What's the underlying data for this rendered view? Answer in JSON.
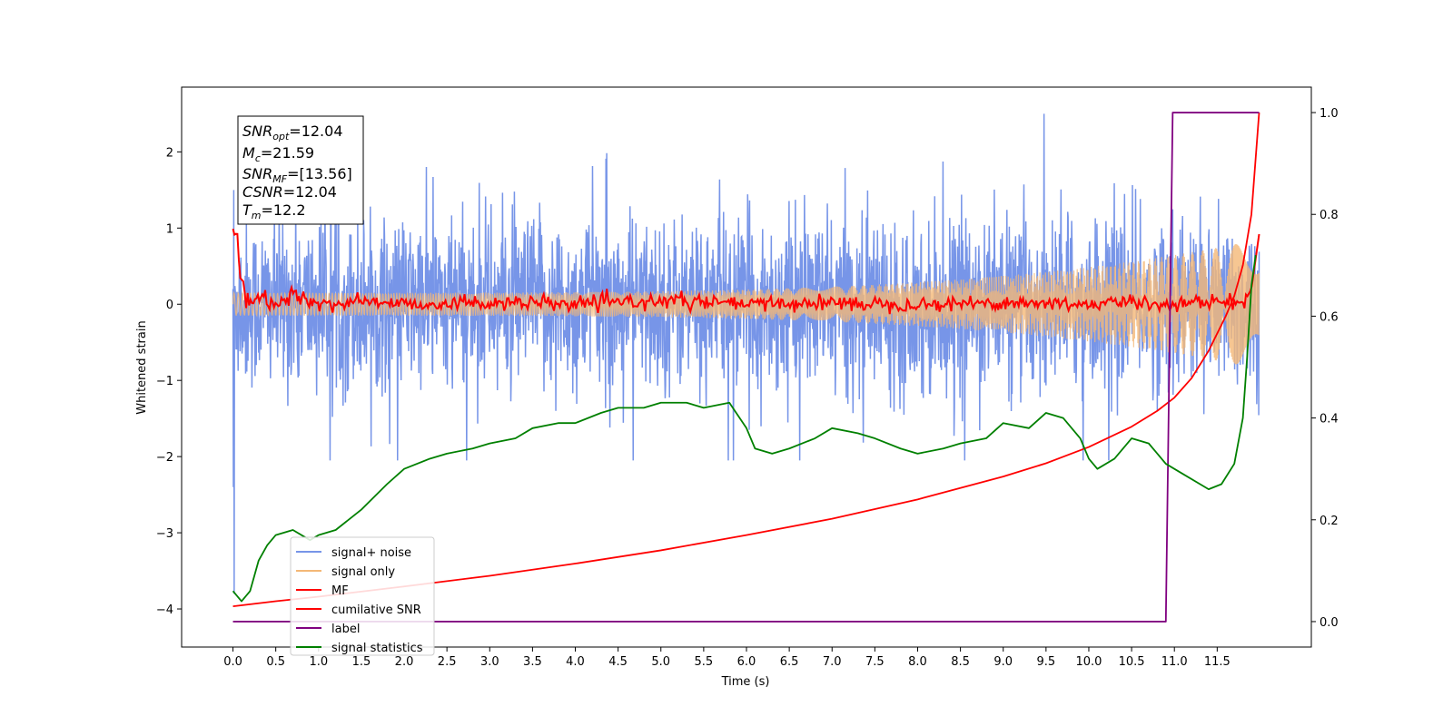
{
  "chart_data": {
    "type": "line",
    "xlabel": "Time (s)",
    "ylabel": "Whitened strain",
    "xlim": [
      -0.6,
      12.6
    ],
    "ylim": [
      -4.5,
      2.85
    ],
    "y2lim": [
      -0.05,
      1.05
    ],
    "x_ticks": [
      "0.0",
      "0.5",
      "1.0",
      "1.5",
      "2.0",
      "2.5",
      "3.0",
      "3.5",
      "4.0",
      "4.5",
      "5.0",
      "5.5",
      "6.0",
      "6.5",
      "7.0",
      "7.5",
      "8.0",
      "8.5",
      "9.0",
      "9.5",
      "10.0",
      "10.5",
      "11.0",
      "11.5"
    ],
    "y_ticks": [
      "−4",
      "−3",
      "−2",
      "−1",
      "0",
      "1",
      "2"
    ],
    "y2_ticks": [
      "0.0",
      "0.2",
      "0.4",
      "0.6",
      "0.8",
      "1.0"
    ],
    "legend_position": "lower-left",
    "colors": {
      "signal_noise": "#7795e8",
      "signal_only": "#f4b877",
      "mf": "#ff0000",
      "cum_snr": "#ff0000",
      "label": "#800080",
      "stats": "#008000"
    },
    "annotation": {
      "snr_opt": "12.04",
      "mc": "21.59",
      "snr_mf": "[13.56]",
      "csnr": "12.04",
      "tm": "12.2"
    },
    "series": [
      {
        "name": "signal+ noise",
        "axis": "left",
        "style": "noise",
        "x_range": [
          0.0,
          11.99
        ],
        "amplitude_typical": 1.1,
        "amplitude_max": 2.5
      },
      {
        "name": "signal only",
        "axis": "left",
        "style": "chirp",
        "x_range": [
          0.0,
          11.99
        ],
        "amplitude_start": 0.15,
        "amplitude_end": 0.85
      },
      {
        "name": "MF",
        "axis": "left",
        "points": [
          [
            0.0,
            0.99
          ],
          [
            0.02,
            0.9
          ],
          [
            0.05,
            0.95
          ],
          [
            0.08,
            0.35
          ],
          [
            0.12,
            0.3
          ],
          [
            0.15,
            0.05
          ],
          [
            0.2,
            0.0
          ],
          [
            0.3,
            0.08
          ],
          [
            0.5,
            -0.02
          ],
          [
            0.7,
            0.15
          ],
          [
            1.0,
            -0.02
          ],
          [
            1.5,
            0.05
          ],
          [
            2.0,
            0.0
          ],
          [
            3.0,
            0.02
          ],
          [
            4.0,
            0.0
          ],
          [
            5.0,
            0.05
          ],
          [
            6.0,
            0.0
          ],
          [
            7.0,
            0.02
          ],
          [
            8.0,
            0.0
          ],
          [
            9.0,
            0.02
          ],
          [
            10.0,
            0.0
          ],
          [
            10.5,
            0.03
          ],
          [
            11.0,
            0.0
          ],
          [
            11.5,
            0.05
          ],
          [
            11.8,
            0.0
          ],
          [
            11.9,
            0.2
          ],
          [
            11.95,
            0.6
          ],
          [
            11.99,
            0.92
          ]
        ],
        "jitter": 0.08
      },
      {
        "name": "cumilative SNR",
        "axis": "right",
        "points": [
          [
            0.0,
            0.03
          ],
          [
            0.5,
            0.04
          ],
          [
            1.0,
            0.049
          ],
          [
            2.0,
            0.069
          ],
          [
            3.0,
            0.09
          ],
          [
            4.0,
            0.114
          ],
          [
            5.0,
            0.14
          ],
          [
            6.0,
            0.17
          ],
          [
            7.0,
            0.202
          ],
          [
            8.0,
            0.24
          ],
          [
            9.0,
            0.285
          ],
          [
            9.5,
            0.311
          ],
          [
            10.0,
            0.343
          ],
          [
            10.5,
            0.383
          ],
          [
            10.8,
            0.414
          ],
          [
            11.0,
            0.44
          ],
          [
            11.2,
            0.478
          ],
          [
            11.4,
            0.532
          ],
          [
            11.6,
            0.6
          ],
          [
            11.7,
            0.64
          ],
          [
            11.8,
            0.7
          ],
          [
            11.9,
            0.8
          ],
          [
            11.99,
            1.0
          ]
        ]
      },
      {
        "name": "label",
        "axis": "right",
        "points": [
          [
            0.0,
            0.0
          ],
          [
            10.9,
            0.0
          ],
          [
            10.98,
            1.0
          ],
          [
            11.99,
            1.0
          ]
        ]
      },
      {
        "name": "signal statistics",
        "axis": "right",
        "points": [
          [
            0.0,
            0.06
          ],
          [
            0.1,
            0.04
          ],
          [
            0.2,
            0.06
          ],
          [
            0.3,
            0.12
          ],
          [
            0.4,
            0.15
          ],
          [
            0.5,
            0.17
          ],
          [
            0.7,
            0.18
          ],
          [
            0.9,
            0.16
          ],
          [
            1.0,
            0.17
          ],
          [
            1.2,
            0.18
          ],
          [
            1.5,
            0.22
          ],
          [
            1.8,
            0.27
          ],
          [
            2.0,
            0.3
          ],
          [
            2.3,
            0.32
          ],
          [
            2.5,
            0.33
          ],
          [
            2.8,
            0.34
          ],
          [
            3.0,
            0.35
          ],
          [
            3.3,
            0.36
          ],
          [
            3.5,
            0.38
          ],
          [
            3.8,
            0.39
          ],
          [
            4.0,
            0.39
          ],
          [
            4.3,
            0.41
          ],
          [
            4.5,
            0.42
          ],
          [
            4.8,
            0.42
          ],
          [
            5.0,
            0.43
          ],
          [
            5.3,
            0.43
          ],
          [
            5.5,
            0.42
          ],
          [
            5.8,
            0.43
          ],
          [
            6.0,
            0.38
          ],
          [
            6.1,
            0.34
          ],
          [
            6.3,
            0.33
          ],
          [
            6.5,
            0.34
          ],
          [
            6.8,
            0.36
          ],
          [
            7.0,
            0.38
          ],
          [
            7.3,
            0.37
          ],
          [
            7.5,
            0.36
          ],
          [
            7.8,
            0.34
          ],
          [
            8.0,
            0.33
          ],
          [
            8.3,
            0.34
          ],
          [
            8.5,
            0.35
          ],
          [
            8.8,
            0.36
          ],
          [
            9.0,
            0.39
          ],
          [
            9.3,
            0.38
          ],
          [
            9.5,
            0.41
          ],
          [
            9.7,
            0.4
          ],
          [
            9.9,
            0.36
          ],
          [
            10.0,
            0.32
          ],
          [
            10.1,
            0.3
          ],
          [
            10.3,
            0.32
          ],
          [
            10.5,
            0.36
          ],
          [
            10.7,
            0.35
          ],
          [
            10.9,
            0.31
          ],
          [
            11.1,
            0.29
          ],
          [
            11.3,
            0.27
          ],
          [
            11.4,
            0.26
          ],
          [
            11.55,
            0.27
          ],
          [
            11.7,
            0.31
          ],
          [
            11.8,
            0.4
          ],
          [
            11.85,
            0.52
          ],
          [
            11.9,
            0.66
          ],
          [
            11.95,
            0.72
          ]
        ]
      }
    ]
  }
}
